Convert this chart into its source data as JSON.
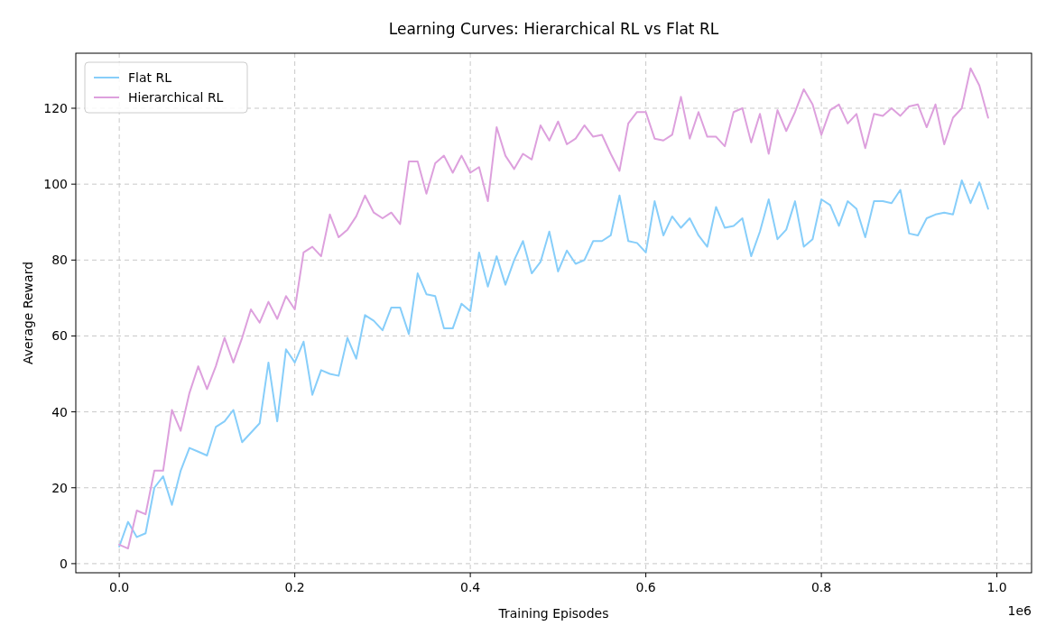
{
  "chart_data": {
    "type": "line",
    "title": "Learning Curves: Hierarchical RL vs Flat RL",
    "xlabel": "Training Episodes",
    "ylabel": "Average Reward",
    "annotations": [
      "1e6"
    ],
    "x": [
      0,
      0.01,
      0.02,
      0.03,
      0.04,
      0.05,
      0.06,
      0.07,
      0.08,
      0.09,
      0.1,
      0.11,
      0.12,
      0.13,
      0.14,
      0.15,
      0.16,
      0.17,
      0.18,
      0.19,
      0.2,
      0.21,
      0.22,
      0.23,
      0.24,
      0.25,
      0.26,
      0.27,
      0.28,
      0.29,
      0.3,
      0.31,
      0.32,
      0.33,
      0.34,
      0.35,
      0.36,
      0.37,
      0.38,
      0.39,
      0.4,
      0.41,
      0.42,
      0.43,
      0.44,
      0.45,
      0.46,
      0.47,
      0.48,
      0.49,
      0.5,
      0.51,
      0.52,
      0.53,
      0.54,
      0.55,
      0.56,
      0.57,
      0.58,
      0.59,
      0.6,
      0.61,
      0.62,
      0.63,
      0.64,
      0.65,
      0.66,
      0.67,
      0.68,
      0.69,
      0.7,
      0.71,
      0.72,
      0.73,
      0.74,
      0.75,
      0.76,
      0.77,
      0.78,
      0.79,
      0.8,
      0.81,
      0.82,
      0.83,
      0.84,
      0.85,
      0.86,
      0.87,
      0.88,
      0.89,
      0.9,
      0.91,
      0.92,
      0.93,
      0.94,
      0.95,
      0.96,
      0.97,
      0.98,
      0.99
    ],
    "series": [
      {
        "name": "Flat RL",
        "color": "#87cefa",
        "values": [
          4.5,
          11,
          7,
          8,
          20,
          23,
          15.5,
          24.5,
          30.5,
          29.5,
          28.5,
          36,
          37.5,
          40.5,
          32,
          34.5,
          37,
          53,
          37.5,
          56.5,
          53,
          58.5,
          44.5,
          51,
          50,
          49.5,
          59.5,
          54,
          65.5,
          64,
          61.5,
          67.5,
          67.5,
          60.5,
          76.5,
          71,
          70.5,
          62,
          62,
          68.5,
          66.5,
          82,
          73,
          81,
          73.5,
          80,
          85,
          76.5,
          79.5,
          87.5,
          77,
          82.5,
          79,
          80,
          85,
          85,
          86.5,
          97,
          85,
          84.5,
          82,
          95.5,
          86.5,
          91.5,
          88.5,
          91,
          86.5,
          83.5,
          94,
          88.5,
          89,
          91,
          81,
          87.5,
          96,
          85.5,
          88,
          95.5,
          83.5,
          85.5,
          96,
          94.5,
          89,
          95.5,
          93.5,
          86,
          95.5,
          95.5,
          95,
          98.5,
          87,
          86.5,
          91,
          92,
          92.5,
          92,
          101,
          95,
          100.5,
          93.5
        ]
      },
      {
        "name": "Hierarchical RL",
        "color": "#dda0dd",
        "values": [
          5,
          4,
          14,
          13,
          24.5,
          24.5,
          40.5,
          35,
          45,
          52,
          46,
          52,
          59.5,
          53,
          59.5,
          67,
          63.5,
          69,
          64.5,
          70.5,
          67,
          82,
          83.5,
          81,
          92,
          86,
          88,
          91.5,
          97,
          92.5,
          91,
          92.5,
          89.5,
          106,
          106,
          97.5,
          105.5,
          107.5,
          103,
          107.5,
          103,
          104.5,
          95.5,
          115,
          107.5,
          104,
          108,
          106.5,
          115.5,
          111.5,
          116.5,
          110.5,
          112,
          115.5,
          112.5,
          113,
          108,
          103.5,
          116,
          119,
          119,
          112,
          111.5,
          113,
          123,
          112,
          119,
          112.5,
          112.5,
          110,
          119,
          120,
          111,
          118.5,
          108,
          119.5,
          114,
          119,
          125,
          121,
          113,
          119.5,
          121,
          116,
          118.5,
          109.5,
          118.5,
          118,
          120,
          118,
          120.5,
          121,
          115,
          121,
          110.5,
          117.5,
          120,
          130.5,
          126,
          117.5
        ]
      }
    ],
    "xlim": [
      -0.0495,
      1.0395
    ],
    "xticks": [
      {
        "value": 0,
        "label": "0.0"
      },
      0.2,
      0.4,
      0.6,
      0.8,
      {
        "value": 1,
        "label": "1.0"
      }
    ],
    "ylim": [
      -2.4,
      134.5
    ],
    "yticks": [
      0,
      20,
      40,
      60,
      80,
      100,
      120
    ],
    "grid": true,
    "legend": "top left",
    "line_style": "solid"
  }
}
